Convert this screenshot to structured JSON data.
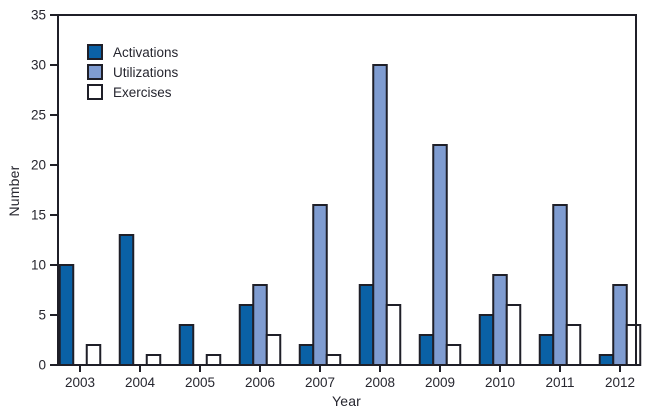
{
  "chart_data": {
    "type": "bar",
    "title": "",
    "xlabel": "Year",
    "ylabel": "Number",
    "categories": [
      "2003",
      "2004",
      "2005",
      "2006",
      "2007",
      "2008",
      "2009",
      "2010",
      "2011",
      "2012"
    ],
    "series": [
      {
        "name": "Activations",
        "color": "#0a61a6",
        "values": [
          10,
          13,
          4,
          6,
          2,
          8,
          3,
          5,
          3,
          1
        ]
      },
      {
        "name": "Utilizations",
        "color": "#7f9cd1",
        "values": [
          0,
          0,
          0,
          8,
          16,
          30,
          22,
          9,
          16,
          8
        ]
      },
      {
        "name": "Exercises",
        "color": "#ffffff",
        "values": [
          2,
          1,
          1,
          3,
          1,
          6,
          2,
          6,
          4,
          4
        ]
      }
    ],
    "ylim": [
      0,
      35
    ],
    "yticks": [
      0,
      5,
      10,
      15,
      20,
      25,
      30,
      35
    ],
    "grid": false,
    "legend_position": "top-left",
    "axis_color": "#1f1f28",
    "bar_outline_color": "#1f1f28",
    "text_color": "#26262f"
  }
}
